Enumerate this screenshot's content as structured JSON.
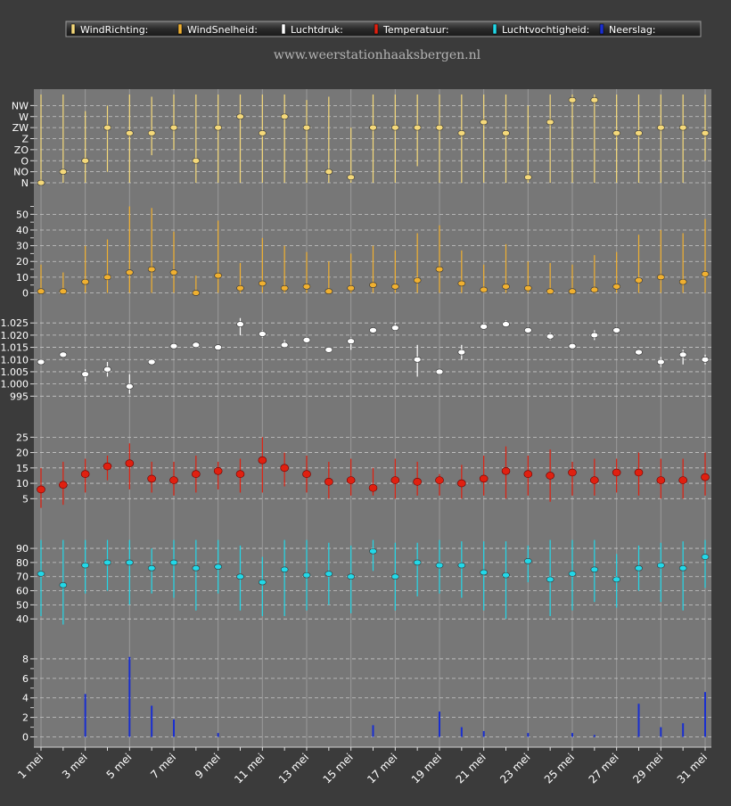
{
  "legend": [
    {
      "label": "WindRichting:",
      "color": "#f5d97a"
    },
    {
      "label": "WindSnelheid:",
      "color": "#f0b030"
    },
    {
      "label": "Luchtdruk:",
      "color": "#ffffff"
    },
    {
      "label": "Temperatuur:",
      "color": "#e02010"
    },
    {
      "label": "Luchtvochtigheid:",
      "color": "#22d8e8"
    },
    {
      "label": "Neerslag:",
      "color": "#1a2fd0"
    }
  ],
  "site": "www.weerstationhaaksbergen.nl",
  "chart_data": {
    "type": "stacked-panels",
    "x": [
      "1 mei",
      "2 mei",
      "3 mei",
      "4 mei",
      "5 mei",
      "6 mei",
      "7 mei",
      "8 mei",
      "9 mei",
      "10 mei",
      "11 mei",
      "12 mei",
      "13 mei",
      "14 mei",
      "15 mei",
      "16 mei",
      "17 mei",
      "18 mei",
      "19 mei",
      "20 mei",
      "21 mei",
      "22 mei",
      "23 mei",
      "24 mei",
      "25 mei",
      "26 mei",
      "27 mei",
      "28 mei",
      "29 mei",
      "30 mei",
      "31 mei"
    ],
    "x_tick_labels": [
      "1 mei",
      "3 mei",
      "5 mei",
      "7 mei",
      "9 mei",
      "11 mei",
      "13 mei",
      "15 mei",
      "17 mei",
      "19 mei",
      "21 mei",
      "23 mei",
      "25 mei",
      "27 mei",
      "29 mei",
      "31 mei"
    ],
    "panels": [
      {
        "name": "WindRichting",
        "color": "#f5d97a",
        "ticks": [
          0,
          1,
          2,
          3,
          4,
          5,
          6,
          7
        ],
        "tick_labels": [
          "N",
          "NO",
          "O",
          "ZO",
          "Z",
          "ZW",
          "W",
          "NW"
        ],
        "ylim": [
          0,
          8
        ],
        "mean": [
          0,
          1,
          2,
          5,
          4.5,
          4.5,
          5,
          2,
          5,
          6,
          4.5,
          6,
          5,
          1,
          0.5,
          5,
          5,
          5,
          5,
          4.5,
          5.5,
          4.5,
          0.5,
          5.5,
          7.5,
          7.5,
          4.5,
          4.5,
          5,
          5,
          4.5
        ],
        "low": [
          0,
          0,
          0,
          1,
          0,
          2.5,
          3,
          0,
          0,
          0,
          0,
          0,
          0,
          0,
          0,
          0,
          0,
          1.5,
          0,
          0,
          0,
          0,
          0,
          0,
          0,
          0,
          0,
          0,
          0,
          0,
          2
        ],
        "high": [
          8,
          8,
          6.5,
          7,
          8,
          7.8,
          8,
          8,
          8,
          8,
          8,
          8,
          7.5,
          7.8,
          5,
          8,
          8,
          8,
          8,
          8,
          8,
          8,
          7,
          8,
          8,
          8,
          8,
          8,
          8,
          8,
          8
        ]
      },
      {
        "name": "WindSnelheid",
        "color": "#f0b030",
        "ticks": [
          0,
          10,
          20,
          30,
          40,
          50
        ],
        "minor_ticks": [
          5,
          15,
          25,
          35,
          45,
          55
        ],
        "ylim": [
          -2,
          57
        ],
        "mean": [
          1,
          1,
          7,
          10,
          13,
          15,
          13,
          0,
          11,
          3,
          6,
          3,
          4,
          1,
          3,
          5,
          4,
          8,
          15,
          6,
          2,
          4,
          3,
          1,
          1,
          2,
          4,
          8,
          10,
          7,
          12
        ],
        "low": [
          0,
          0,
          0,
          0,
          0,
          0,
          0,
          0,
          0,
          0,
          0,
          0,
          0,
          0,
          0,
          0,
          0,
          0,
          0,
          0,
          0,
          0,
          0,
          0,
          0,
          0,
          0,
          0,
          0,
          0,
          0
        ],
        "high": [
          18,
          13,
          30,
          34,
          55,
          54,
          39,
          11,
          46,
          19,
          35,
          30,
          26,
          20,
          25,
          30,
          27,
          38,
          43,
          27,
          18,
          31,
          20,
          19,
          18,
          24,
          26,
          37,
          40,
          38,
          47
        ]
      },
      {
        "name": "Luchtdruk",
        "color": "#ffffff",
        "ticks": [
          995,
          1000,
          1005,
          1010,
          1015,
          1020,
          1025
        ],
        "tick_labels": [
          "995",
          "1.000",
          "1.005",
          "1.010",
          "1.015",
          "1.020",
          "1.025"
        ],
        "ylim": [
          990,
          1028
        ],
        "mean": [
          1009,
          1012,
          1004,
          1006,
          999,
          1009,
          1015.5,
          1016,
          1015,
          1024.5,
          1020.5,
          1016,
          1018,
          1014,
          1017.5,
          1022,
          1023,
          1010,
          1005,
          1013,
          1023.5,
          1024.5,
          1022,
          1019.5,
          1015.5,
          1020,
          1022,
          1013,
          1009,
          1012,
          1010
        ],
        "low": [
          1008,
          1011,
          1001,
          1003,
          996,
          1008,
          1015,
          1015,
          1014,
          1020,
          1019,
          1015,
          1017,
          1013,
          1014,
          1021,
          1022,
          1003,
          1004,
          1010,
          1023,
          1024,
          1021,
          1018,
          1015,
          1018,
          1021,
          1012,
          1007,
          1008,
          1008
        ],
        "high": [
          1010,
          1013,
          1006,
          1009,
          1004,
          1010,
          1016,
          1017,
          1016,
          1027,
          1022,
          1018,
          1019,
          1015,
          1019,
          1023,
          1025,
          1016,
          1006,
          1016,
          1025,
          1026,
          1023,
          1021,
          1016,
          1022,
          1023,
          1014,
          1011,
          1014,
          1012
        ]
      },
      {
        "name": "Temperatuur",
        "color": "#e02010",
        "ticks": [
          5,
          10,
          15,
          20,
          25
        ],
        "ylim": [
          -1,
          28
        ],
        "mean": [
          8,
          9.5,
          13,
          15.5,
          16.5,
          11.5,
          11,
          13,
          14,
          13,
          17.5,
          15,
          13,
          10.5,
          11,
          8.5,
          11,
          10.5,
          11,
          10,
          11.5,
          14,
          13,
          12.5,
          13.5,
          11,
          13.5,
          13.5,
          11,
          11,
          12
        ],
        "low": [
          2,
          3,
          7,
          11,
          8,
          7,
          6,
          7,
          8,
          7,
          7,
          9,
          7,
          5,
          6,
          6,
          5,
          6,
          6,
          5,
          6,
          5,
          6,
          4,
          6,
          6,
          7,
          6,
          5,
          5,
          6
        ],
        "high": [
          15,
          17,
          18,
          19,
          23,
          17,
          17,
          19,
          17,
          18,
          25,
          20,
          19,
          17,
          18,
          15,
          18,
          17,
          13,
          16,
          19,
          22,
          19,
          21,
          17,
          18,
          18,
          20,
          18,
          18,
          20
        ]
      },
      {
        "name": "Luchtvochtigheid",
        "color": "#22d8e8",
        "ticks": [
          40,
          50,
          60,
          70,
          80,
          90
        ],
        "ylim": [
          30,
          97
        ],
        "mean": [
          72,
          64,
          78,
          80,
          80,
          76,
          80,
          76,
          77,
          70,
          66,
          75,
          71,
          72,
          70,
          88,
          70,
          80,
          78,
          78,
          73,
          71,
          81,
          68,
          72,
          75,
          68,
          76,
          78,
          76,
          84
        ],
        "low": [
          42,
          36,
          58,
          60,
          50,
          58,
          55,
          46,
          58,
          46,
          42,
          42,
          46,
          50,
          44,
          74,
          46,
          56,
          58,
          55,
          46,
          40,
          66,
          42,
          46,
          52,
          48,
          60,
          52,
          46,
          62
        ],
        "high": [
          96,
          96,
          96,
          96,
          96,
          90,
          96,
          96,
          96,
          92,
          84,
          96,
          96,
          94,
          92,
          96,
          94,
          94,
          96,
          95,
          95,
          95,
          92,
          96,
          96,
          96,
          86,
          92,
          94,
          95,
          96
        ]
      },
      {
        "name": "Neerslag",
        "color": "#1a2fd0",
        "ticks": [
          0,
          2,
          4,
          6,
          8
        ],
        "minor_ticks": [
          1,
          3,
          5,
          7
        ],
        "ylim": [
          -0.5,
          9
        ],
        "values": [
          0,
          0,
          4.4,
          0,
          8.2,
          3.2,
          1.8,
          0,
          0.4,
          0,
          0,
          0,
          0,
          0,
          0,
          1.2,
          0,
          0,
          2.6,
          1,
          0.6,
          0,
          0.4,
          0,
          0.4,
          0.2,
          0,
          3.4,
          1,
          1.4,
          4.6
        ]
      }
    ]
  }
}
